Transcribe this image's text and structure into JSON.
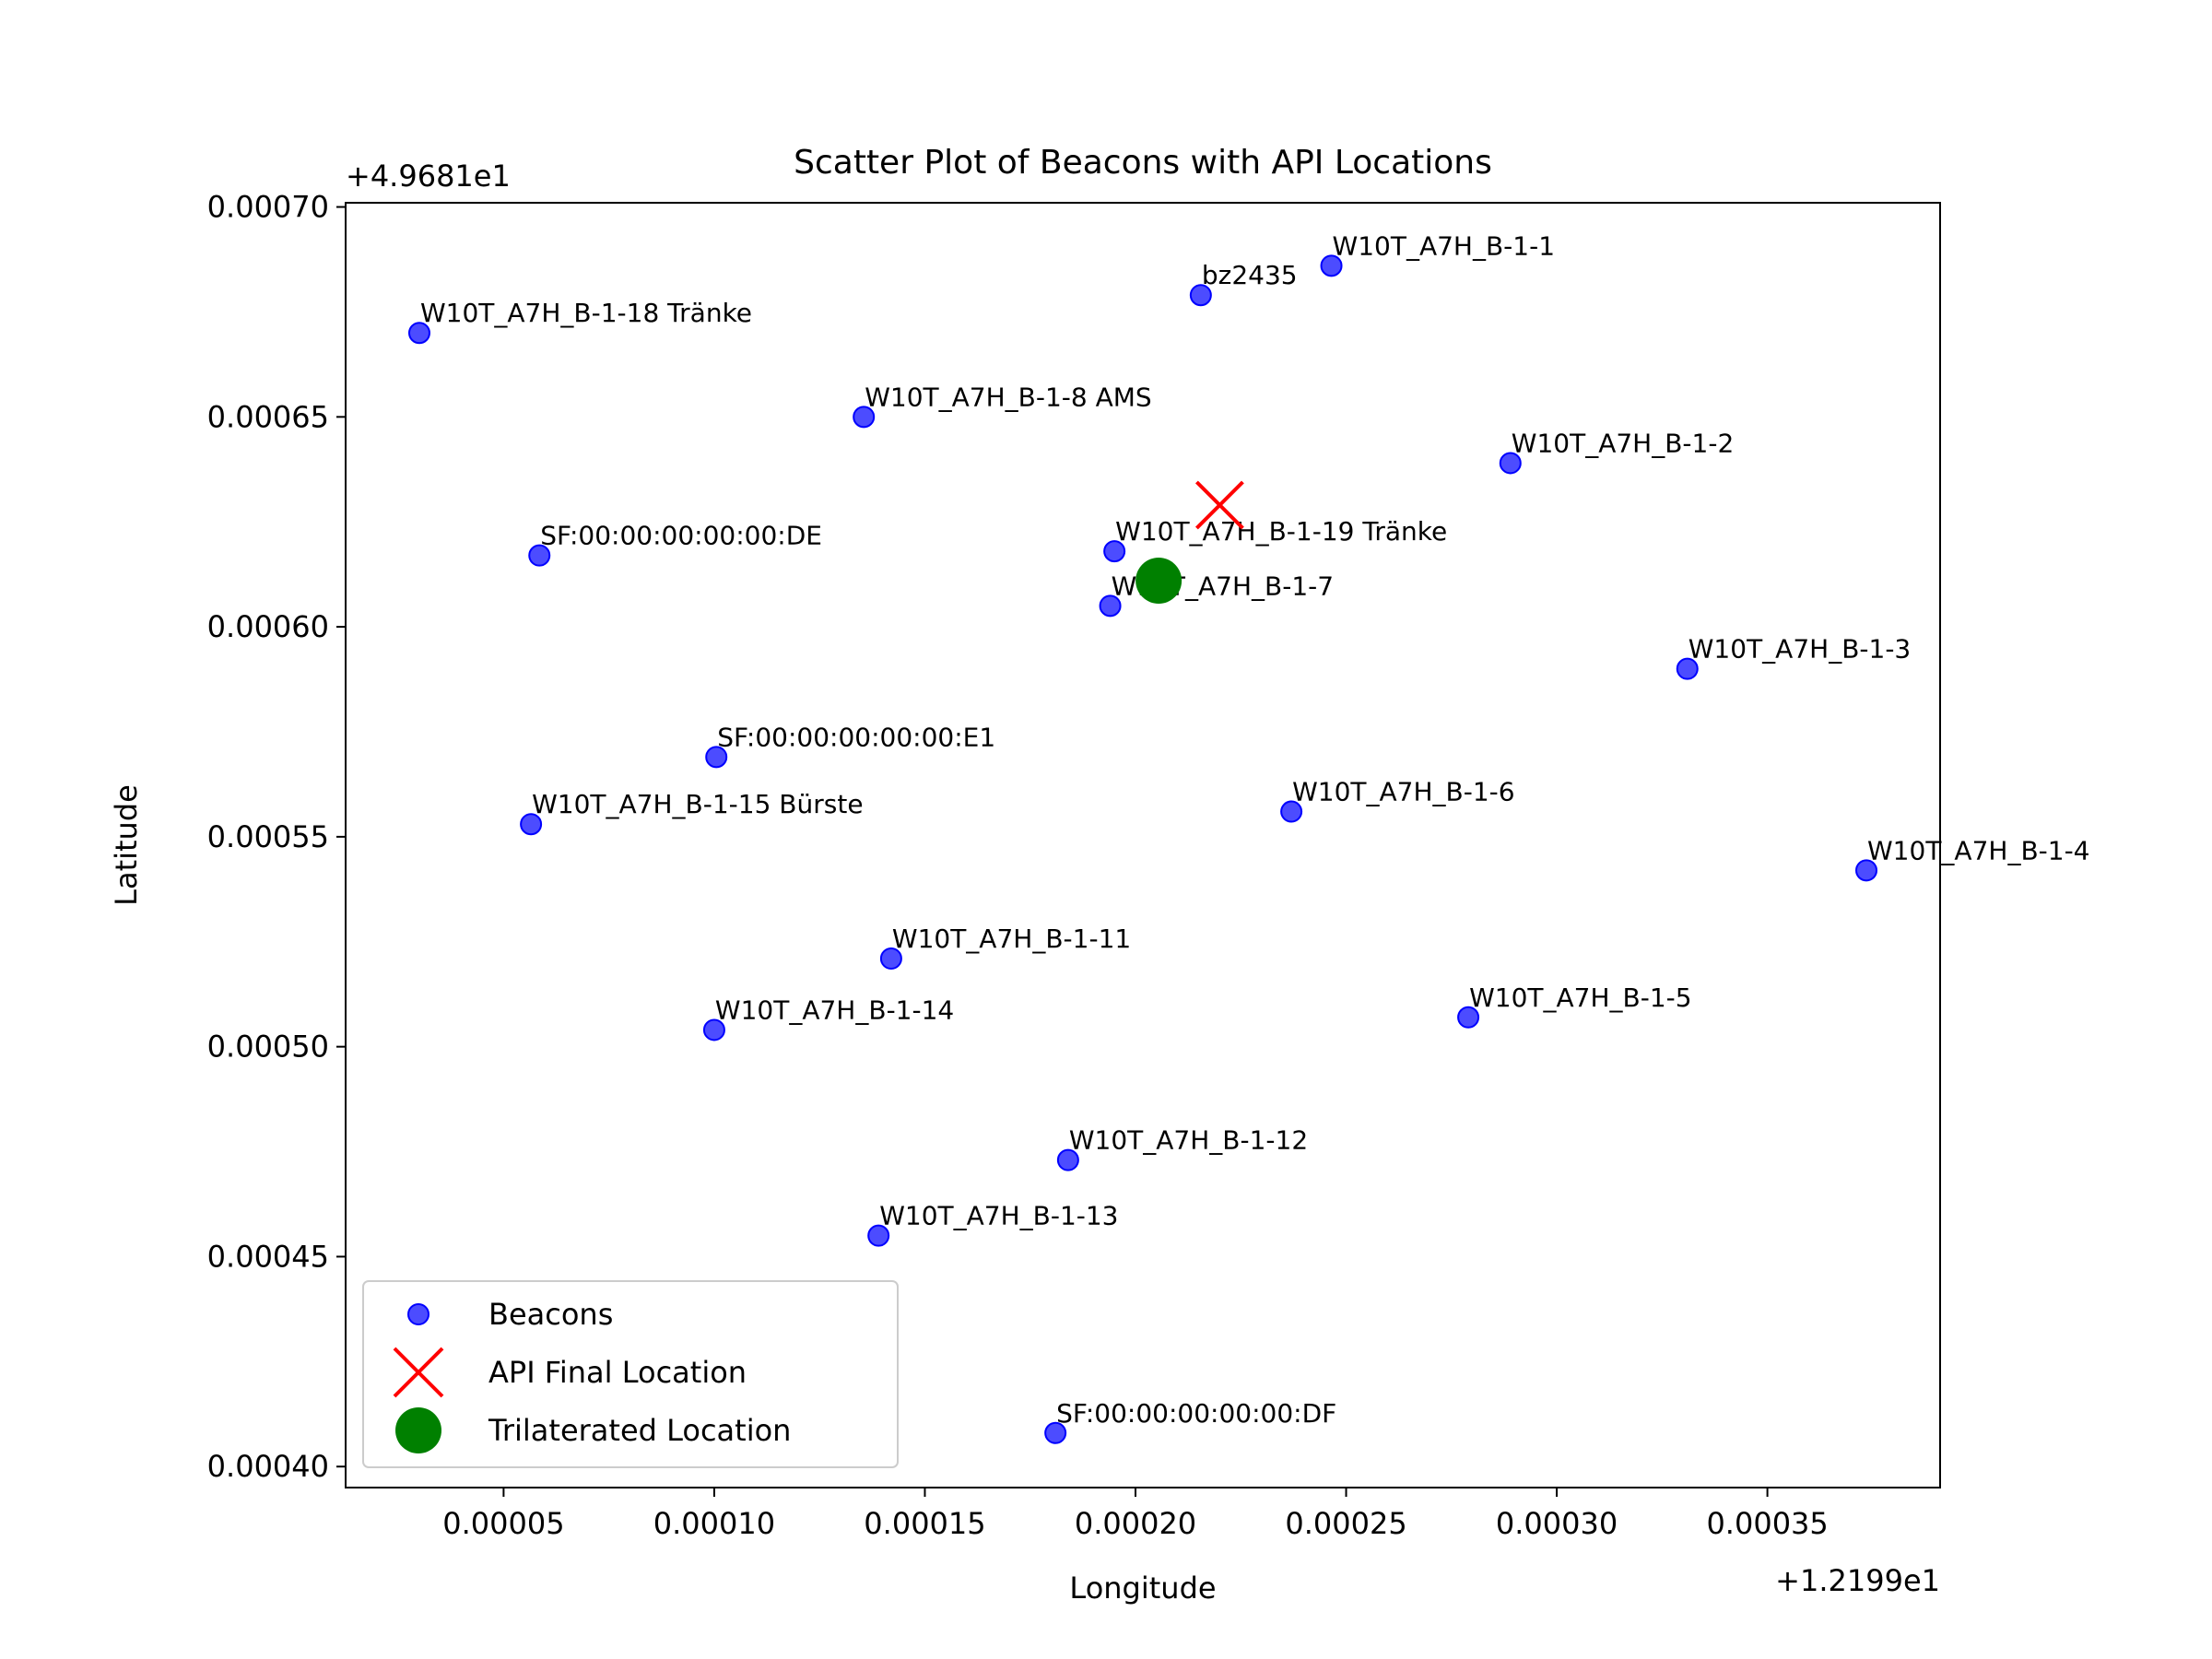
{
  "chart_data": {
    "type": "scatter",
    "title": "Scatter Plot of Beacons with API Locations",
    "xlabel": "Longitude",
    "ylabel": "Latitude",
    "x_offset_label": "+1.2199e1",
    "y_offset_label": "+4.9681e1",
    "xlim": [
      1.25e-05,
      0.000391
    ],
    "ylim": [
      0.000395,
      0.000701
    ],
    "xticks": [
      5e-05,
      0.0001,
      0.00015,
      0.0002,
      0.00025,
      0.0003,
      0.00035
    ],
    "xtick_labels": [
      "0.00005",
      "0.00010",
      "0.00015",
      "0.00020",
      "0.00025",
      "0.00030",
      "0.00035"
    ],
    "yticks": [
      0.0004,
      0.00045,
      0.0005,
      0.00055,
      0.0006,
      0.00065,
      0.0007
    ],
    "ytick_labels": [
      "0.00040",
      "0.00045",
      "0.00050",
      "0.00055",
      "0.00060",
      "0.00065",
      "0.00070"
    ],
    "grid": false,
    "legend_placement": "lower-left",
    "legend": [
      {
        "label": "Beacons",
        "marker": "circle",
        "color": "#3333ff"
      },
      {
        "label": "API Final Location",
        "marker": "x",
        "color": "#ff0000"
      },
      {
        "label": "Trilaterated Location",
        "marker": "big-circle",
        "color": "#008000"
      }
    ],
    "series": [
      {
        "name": "Beacons",
        "color": "#3333ff",
        "points": [
          {
            "label": "W10T_A7H_B-1-1",
            "x": 0.0002465,
            "y": 0.000686
          },
          {
            "label": "bz2435",
            "x": 0.0002155,
            "y": 0.000679
          },
          {
            "label": "W10T_A7H_B-1-18 Tränke",
            "x": 3e-05,
            "y": 0.00067
          },
          {
            "label": "W10T_A7H_B-1-8 AMS",
            "x": 0.0001355,
            "y": 0.00065
          },
          {
            "label": "W10T_A7H_B-1-2",
            "x": 0.000289,
            "y": 0.000639
          },
          {
            "label": "SF:00:00:00:00:00:DE",
            "x": 5.85e-05,
            "y": 0.000617
          },
          {
            "label": "W10T_A7H_B-1-19 Tränke",
            "x": 0.000195,
            "y": 0.000618
          },
          {
            "label": "W10T_A7H_B-1-7",
            "x": 0.000194,
            "y": 0.000605
          },
          {
            "label": "W10T_A7H_B-1-3",
            "x": 0.000331,
            "y": 0.00059
          },
          {
            "label": "SF:00:00:00:00:00:E1",
            "x": 0.0001005,
            "y": 0.000569
          },
          {
            "label": "W10T_A7H_B-1-15 Bürste",
            "x": 5.65e-05,
            "y": 0.000553
          },
          {
            "label": "W10T_A7H_B-1-6",
            "x": 0.000237,
            "y": 0.000556
          },
          {
            "label": "W10T_A7H_B-1-4",
            "x": 0.0003735,
            "y": 0.000542
          },
          {
            "label": "W10T_A7H_B-1-11",
            "x": 0.000142,
            "y": 0.000521
          },
          {
            "label": "W10T_A7H_B-1-14",
            "x": 0.0001,
            "y": 0.000504
          },
          {
            "label": "W10T_A7H_B-1-5",
            "x": 0.000279,
            "y": 0.000507
          },
          {
            "label": "W10T_A7H_B-1-12",
            "x": 0.000184,
            "y": 0.000473
          },
          {
            "label": "W10T_A7H_B-1-13",
            "x": 0.000139,
            "y": 0.000455
          },
          {
            "label": "SF:00:00:00:00:00:DF",
            "x": 0.000181,
            "y": 0.000408
          }
        ]
      },
      {
        "name": "API Final Location",
        "color": "#ff0000",
        "points": [
          {
            "x": 0.00022,
            "y": 0.000629
          }
        ]
      },
      {
        "name": "Trilaterated Location",
        "color": "#008000",
        "points": [
          {
            "x": 0.0002055,
            "y": 0.000611
          }
        ]
      }
    ]
  }
}
